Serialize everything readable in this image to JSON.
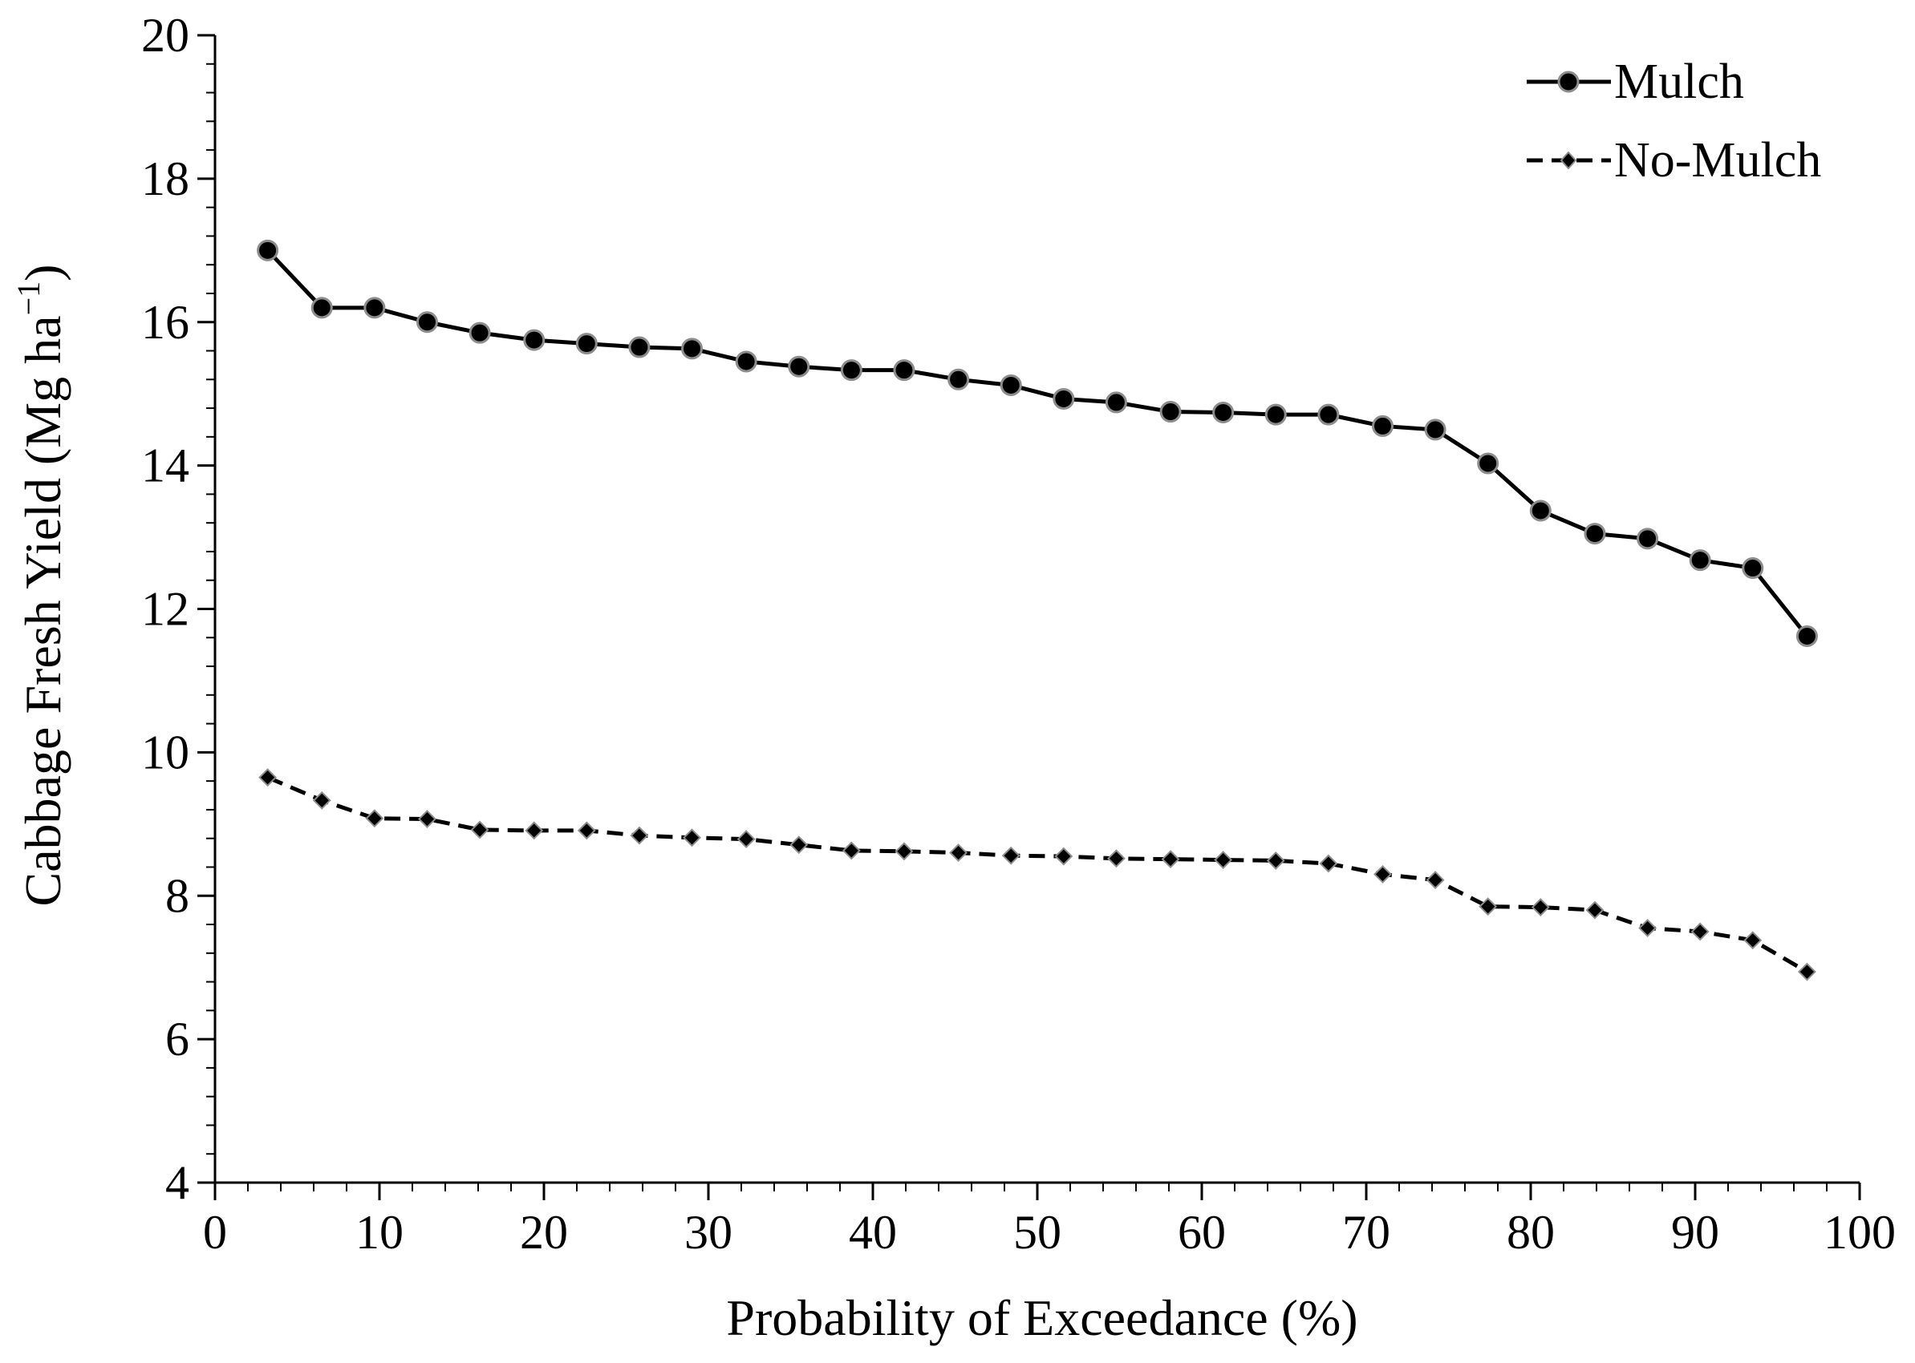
{
  "chart_data": {
    "type": "line",
    "title": "",
    "xlabel": "Probability of Exceedance (%)",
    "ylabel": "Cabbage Fresh Yield (Mg ha",
    "ylabel_sup": "−1",
    "ylabel_close": ")",
    "xlim": [
      0,
      100
    ],
    "ylim": [
      4,
      20
    ],
    "x_ticks": [
      0,
      10,
      20,
      30,
      40,
      50,
      60,
      70,
      80,
      90,
      100
    ],
    "y_ticks": [
      4,
      6,
      8,
      10,
      12,
      14,
      16,
      18,
      20
    ],
    "legend_position": "top-right",
    "x": [
      3.2,
      6.5,
      9.7,
      12.9,
      16.1,
      19.4,
      22.6,
      25.8,
      29.0,
      32.3,
      35.5,
      38.7,
      41.9,
      45.2,
      48.4,
      51.6,
      54.8,
      58.1,
      61.3,
      64.5,
      67.7,
      71.0,
      74.2,
      77.4,
      80.6,
      83.9,
      87.1,
      90.3,
      93.5,
      96.8
    ],
    "series": [
      {
        "name": "Mulch",
        "marker": "circle",
        "line": "solid",
        "values": [
          17.0,
          16.2,
          16.2,
          16.0,
          15.85,
          15.75,
          15.7,
          15.65,
          15.63,
          15.45,
          15.38,
          15.33,
          15.33,
          15.2,
          15.12,
          14.93,
          14.88,
          14.75,
          14.74,
          14.71,
          14.71,
          14.55,
          14.5,
          14.03,
          13.37,
          13.05,
          12.98,
          12.68,
          12.57,
          11.62
        ]
      },
      {
        "name": "No-Mulch",
        "marker": "diamond",
        "line": "dashed",
        "values": [
          9.65,
          9.33,
          9.08,
          9.07,
          8.92,
          8.91,
          8.91,
          8.84,
          8.81,
          8.79,
          8.71,
          8.63,
          8.62,
          8.6,
          8.56,
          8.55,
          8.52,
          8.51,
          8.5,
          8.49,
          8.45,
          8.3,
          8.22,
          7.85,
          7.84,
          7.8,
          7.55,
          7.5,
          7.38,
          6.94
        ]
      }
    ]
  }
}
